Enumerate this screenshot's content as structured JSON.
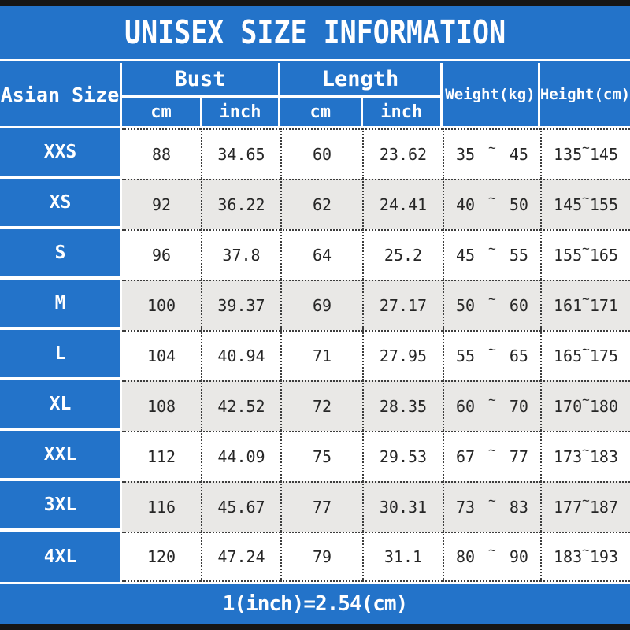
{
  "title": "UNISEX SIZE INFORMATION",
  "footer_note": "1(inch)=2.54(cm)",
  "tilde": "~",
  "colors": {
    "header_blue": "#2373c9",
    "alt_row_gray": "#e9e8e6",
    "edge_bar_black": "#161616",
    "data_text": "#262626"
  },
  "table": {
    "size_header": "Asian Size",
    "groups": [
      {
        "label": "Bust",
        "subs": [
          "cm",
          "inch"
        ]
      },
      {
        "label": "Length",
        "subs": [
          "cm",
          "inch"
        ]
      }
    ],
    "single_headers": [
      "Weight(kg)",
      "Height(cm)"
    ],
    "rows": [
      {
        "size": "XXS",
        "bust_cm": "88",
        "bust_inch": "34.65",
        "length_cm": "60",
        "length_inch": "23.62",
        "weight_min": "35",
        "weight_max": "45",
        "height_min": "135",
        "height_max": "145"
      },
      {
        "size": "XS",
        "bust_cm": "92",
        "bust_inch": "36.22",
        "length_cm": "62",
        "length_inch": "24.41",
        "weight_min": "40",
        "weight_max": "50",
        "height_min": "145",
        "height_max": "155"
      },
      {
        "size": "S",
        "bust_cm": "96",
        "bust_inch": "37.8",
        "length_cm": "64",
        "length_inch": "25.2",
        "weight_min": "45",
        "weight_max": "55",
        "height_min": "155",
        "height_max": "165"
      },
      {
        "size": "M",
        "bust_cm": "100",
        "bust_inch": "39.37",
        "length_cm": "69",
        "length_inch": "27.17",
        "weight_min": "50",
        "weight_max": "60",
        "height_min": "161",
        "height_max": "171"
      },
      {
        "size": "L",
        "bust_cm": "104",
        "bust_inch": "40.94",
        "length_cm": "71",
        "length_inch": "27.95",
        "weight_min": "55",
        "weight_max": "65",
        "height_min": "165",
        "height_max": "175"
      },
      {
        "size": "XL",
        "bust_cm": "108",
        "bust_inch": "42.52",
        "length_cm": "72",
        "length_inch": "28.35",
        "weight_min": "60",
        "weight_max": "70",
        "height_min": "170",
        "height_max": "180"
      },
      {
        "size": "XXL",
        "bust_cm": "112",
        "bust_inch": "44.09",
        "length_cm": "75",
        "length_inch": "29.53",
        "weight_min": "67",
        "weight_max": "77",
        "height_min": "173",
        "height_max": "183"
      },
      {
        "size": "3XL",
        "bust_cm": "116",
        "bust_inch": "45.67",
        "length_cm": "77",
        "length_inch": "30.31",
        "weight_min": "73",
        "weight_max": "83",
        "height_min": "177",
        "height_max": "187"
      },
      {
        "size": "4XL",
        "bust_cm": "120",
        "bust_inch": "47.24",
        "length_cm": "79",
        "length_inch": "31.1",
        "weight_min": "80",
        "weight_max": "90",
        "height_min": "183",
        "height_max": "193"
      }
    ]
  },
  "chart_data": {
    "type": "table",
    "title": "UNISEX SIZE INFORMATION",
    "columns": [
      "Asian Size",
      "Bust cm",
      "Bust inch",
      "Length cm",
      "Length inch",
      "Weight(kg)",
      "Height(cm)"
    ],
    "rows": [
      [
        "XXS",
        88,
        34.65,
        60,
        23.62,
        "35~45",
        "135~145"
      ],
      [
        "XS",
        92,
        36.22,
        62,
        24.41,
        "40~50",
        "145~155"
      ],
      [
        "S",
        96,
        37.8,
        64,
        25.2,
        "45~55",
        "155~165"
      ],
      [
        "M",
        100,
        39.37,
        69,
        27.17,
        "50~60",
        "161~171"
      ],
      [
        "L",
        104,
        40.94,
        71,
        27.95,
        "55~65",
        "165~175"
      ],
      [
        "XL",
        108,
        42.52,
        72,
        28.35,
        "60~70",
        "170~180"
      ],
      [
        "XXL",
        112,
        44.09,
        75,
        29.53,
        "67~77",
        "173~183"
      ],
      [
        "3XL",
        116,
        45.67,
        77,
        30.31,
        "73~83",
        "177~187"
      ],
      [
        "4XL",
        120,
        47.24,
        79,
        31.1,
        "80~90",
        "183~193"
      ]
    ],
    "note": "1(inch)=2.54(cm)",
    "layout": "grouped header: Bust and Length each split into cm/inch sub-columns; alternating row shading"
  }
}
